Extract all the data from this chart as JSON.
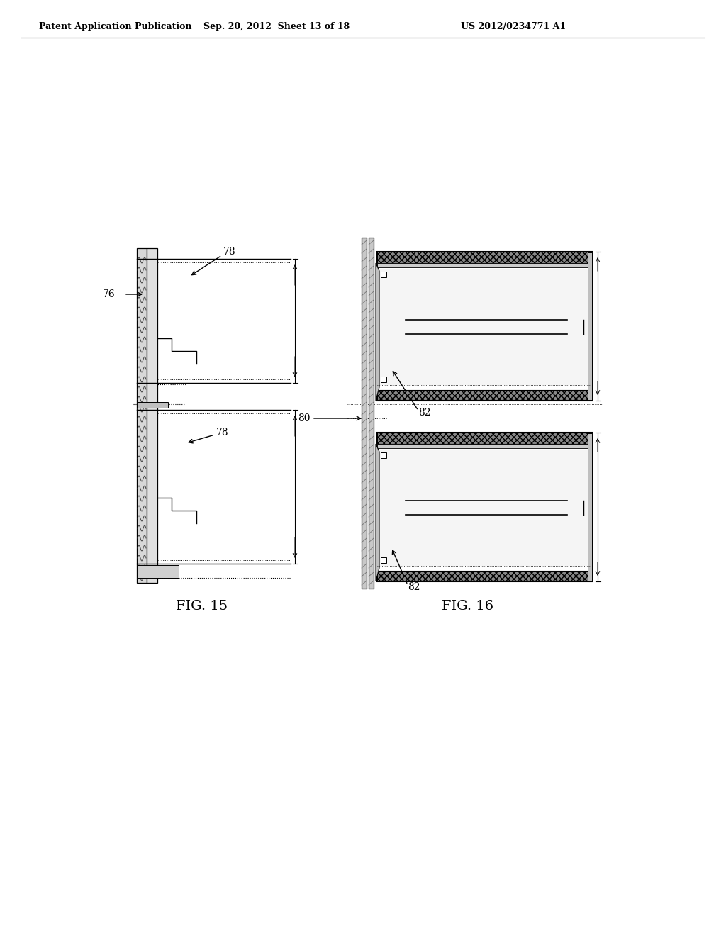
{
  "page_title_left": "Patent Application Publication",
  "page_title_center": "Sep. 20, 2012  Sheet 13 of 18",
  "page_title_right": "US 2012/0234771 A1",
  "fig15_label": "FIG. 15",
  "fig16_label": "FIG. 16",
  "label_76": "76",
  "label_78a": "78",
  "label_78b": "78",
  "label_80": "80",
  "label_82a": "82",
  "label_82b": "82",
  "bg_color": "#ffffff",
  "line_color": "#000000",
  "med_gray": "#aaaaaa",
  "dark_gray": "#666666",
  "light_gray": "#dddddd",
  "hatch_gray": "#999999"
}
